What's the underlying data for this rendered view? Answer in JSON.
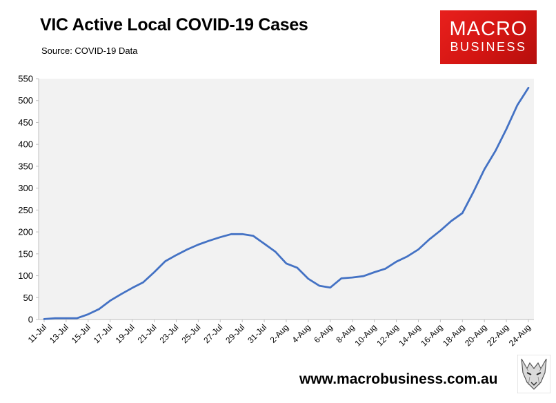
{
  "header": {
    "title": "VIC Active Local COVID-19 Cases",
    "subtitle": "Source: COVID-19 Data"
  },
  "logo": {
    "line1": "MACRO",
    "line2": "BUSINESS",
    "color": "#d9201c"
  },
  "footer": {
    "url": "www.macrobusiness.com.au",
    "icon": "wolf-logo-icon"
  },
  "chart_data": {
    "type": "line",
    "title": "VIC Active Local COVID-19 Cases",
    "subtitle": "Source: COVID-19 Data",
    "xlabel": "",
    "ylabel": "",
    "ylim": [
      0,
      550
    ],
    "yticks": [
      0,
      50,
      100,
      150,
      200,
      250,
      300,
      350,
      400,
      450,
      500,
      550
    ],
    "xtick_labels": [
      "11-Jul",
      "13-Jul",
      "15-Jul",
      "17-Jul",
      "19-Jul",
      "21-Jul",
      "23-Jul",
      "25-Jul",
      "27-Jul",
      "29-Jul",
      "31-Jul",
      "2-Aug",
      "4-Aug",
      "6-Aug",
      "8-Aug",
      "10-Aug",
      "12-Aug",
      "14-Aug",
      "16-Aug",
      "18-Aug",
      "20-Aug",
      "22-Aug",
      "24-Aug"
    ],
    "grid": false,
    "line_color": "#4472c4",
    "plot_background": "#f2f2f2",
    "series": [
      {
        "x": [
          "11-Jul",
          "12-Jul",
          "13-Jul",
          "14-Jul",
          "15-Jul",
          "16-Jul",
          "17-Jul",
          "18-Jul",
          "19-Jul",
          "20-Jul",
          "21-Jul",
          "22-Jul",
          "23-Jul",
          "24-Jul",
          "25-Jul",
          "26-Jul",
          "27-Jul",
          "28-Jul",
          "29-Jul",
          "30-Jul",
          "31-Jul",
          "1-Aug",
          "2-Aug",
          "3-Aug",
          "4-Aug",
          "5-Aug",
          "6-Aug",
          "7-Aug",
          "8-Aug",
          "9-Aug",
          "10-Aug",
          "11-Aug",
          "12-Aug",
          "13-Aug",
          "14-Aug",
          "15-Aug",
          "16-Aug",
          "17-Aug",
          "18-Aug",
          "19-Aug",
          "20-Aug",
          "21-Aug",
          "22-Aug",
          "23-Aug",
          "24-Aug"
        ],
        "values": [
          1,
          3,
          3,
          3,
          12,
          24,
          43,
          58,
          72,
          85,
          108,
          133,
          147,
          160,
          171,
          180,
          188,
          195,
          195,
          191,
          173,
          155,
          128,
          118,
          93,
          77,
          73,
          94,
          96,
          99,
          108,
          116,
          132,
          144,
          160,
          183,
          203,
          225,
          243,
          291,
          343,
          385,
          435,
          490,
          529
        ]
      }
    ]
  }
}
